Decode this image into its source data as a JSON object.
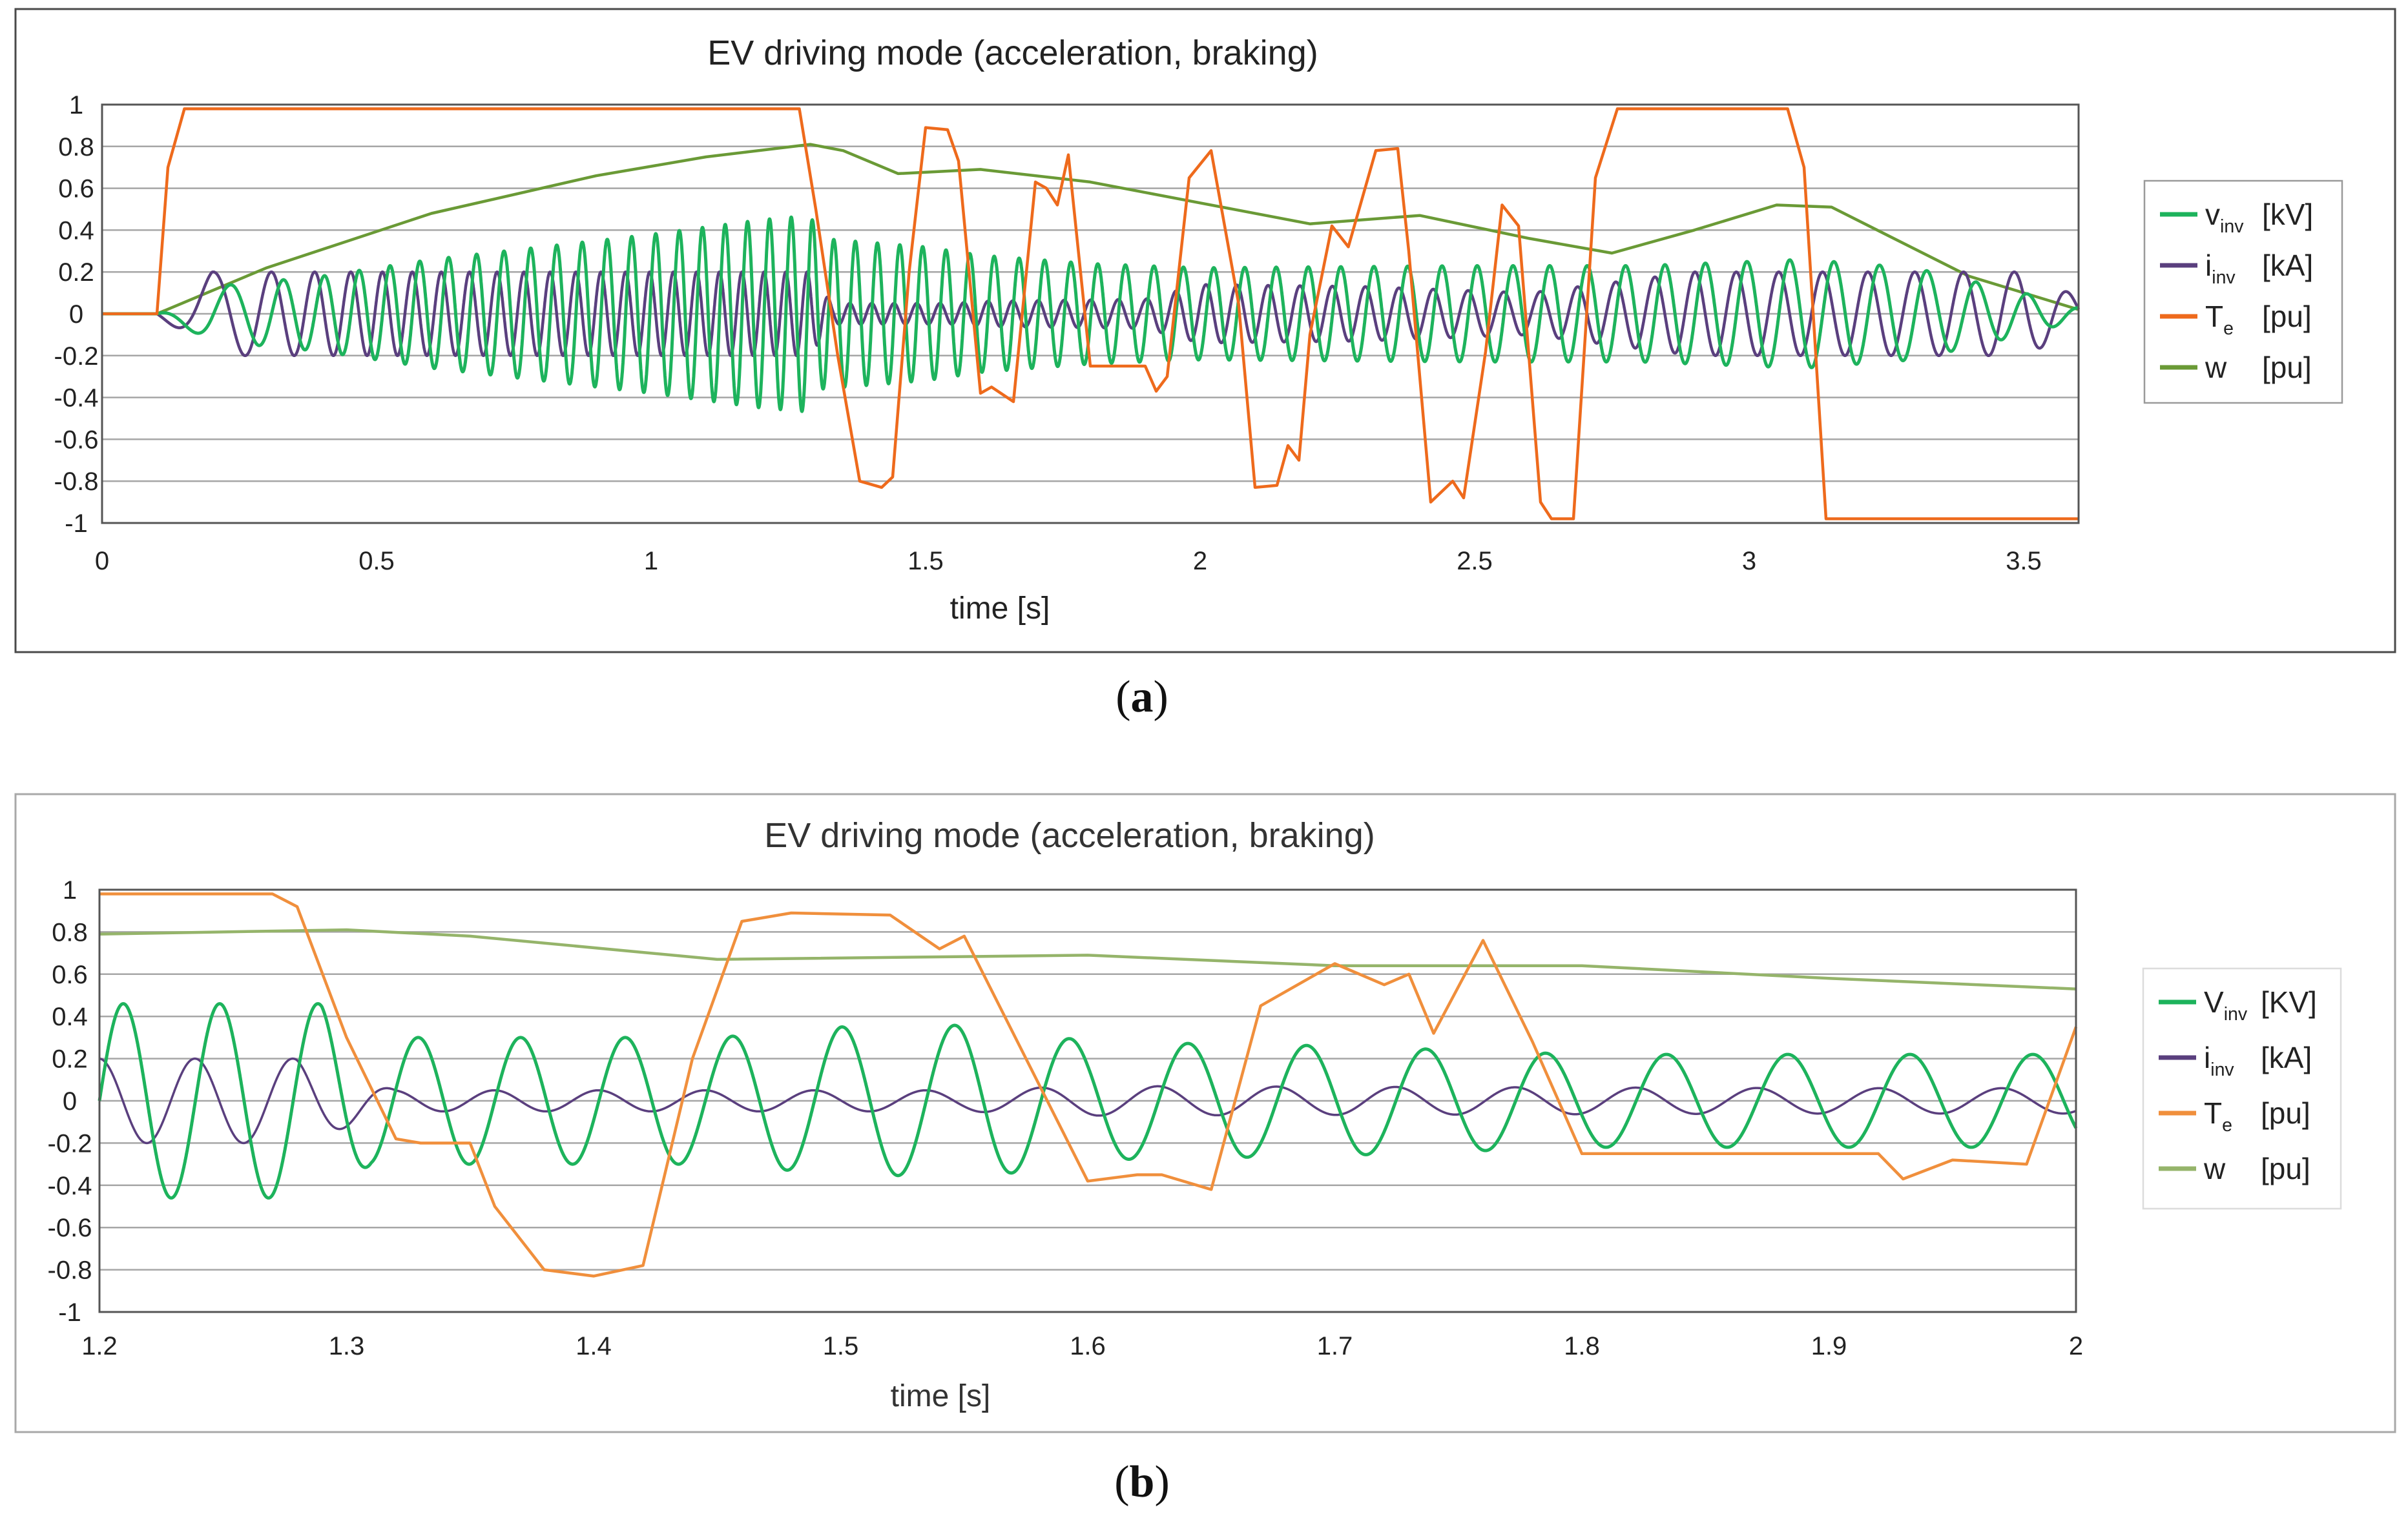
{
  "colors": {
    "v_inv": "#1db35c",
    "i_inv": "#5a3f7e",
    "T_e_a": "#ee6a1c",
    "T_e_b": "#f08f3c",
    "w_a": "#6a9a36",
    "w_b": "#95b46a",
    "grid": "#a6a6a6",
    "frame": "#4a4a4a"
  },
  "chart_data": [
    {
      "type": "line",
      "panel": "a",
      "caption_letter": "a",
      "title": "EV driving mode (acceleration, braking)",
      "xlabel": "time [s]",
      "ylabel": "",
      "xlim": [
        0,
        3.6
      ],
      "ylim": [
        -1,
        1
      ],
      "xticks": [
        "0",
        "0.5",
        "1",
        "1.5",
        "2",
        "2.5",
        "3",
        "3.5"
      ],
      "xtick_values": [
        0,
        0.5,
        1,
        1.5,
        2,
        2.5,
        3,
        3.5
      ],
      "yticks": [
        "1",
        "0.8",
        "0.6",
        "0.4",
        "0.2",
        "0",
        "-0.2",
        "-0.4",
        "-0.6",
        "-0.8",
        "-1"
      ],
      "ytick_values": [
        1,
        0.8,
        0.6,
        0.4,
        0.2,
        0,
        -0.2,
        -0.4,
        -0.6,
        -0.8,
        -1
      ],
      "grid": true,
      "legend_position": "right",
      "legend": [
        {
          "base": "v",
          "sub": "inv",
          "unit": "[kV]"
        },
        {
          "base": "i",
          "sub": "inv",
          "unit": "[kA]"
        },
        {
          "base": "T",
          "sub": "e",
          "unit": "[pu]"
        },
        {
          "base": "w",
          "sub": "",
          "unit": "[pu]"
        }
      ],
      "series": [
        {
          "name": "v_inv [kV]",
          "kind": "oscillation",
          "freq": [
            [
              0.1,
              4
            ],
            [
              0.5,
              18
            ],
            [
              1.3,
              26
            ],
            [
              2.0,
              18
            ],
            [
              3.6,
              10
            ]
          ],
          "amplitude": [
            [
              0,
              0
            ],
            [
              0.1,
              0
            ],
            [
              0.2,
              0.13
            ],
            [
              0.4,
              0.18
            ],
            [
              0.6,
              0.26
            ],
            [
              0.8,
              0.32
            ],
            [
              1.0,
              0.38
            ],
            [
              1.2,
              0.45
            ],
            [
              1.29,
              0.47
            ],
            [
              1.31,
              0.36
            ],
            [
              1.5,
              0.32
            ],
            [
              1.6,
              0.28
            ],
            [
              1.8,
              0.24
            ],
            [
              2.0,
              0.22
            ],
            [
              2.5,
              0.23
            ],
            [
              2.8,
              0.23
            ],
            [
              3.1,
              0.26
            ],
            [
              3.3,
              0.22
            ],
            [
              3.5,
              0.1
            ],
            [
              3.6,
              0.03
            ]
          ]
        },
        {
          "name": "i_inv [kA]",
          "kind": "oscillation",
          "freq": [
            [
              0.1,
              4
            ],
            [
              0.5,
              18
            ],
            [
              1.3,
              26
            ],
            [
              2.0,
              18
            ],
            [
              3.6,
              10
            ]
          ],
          "phase": 1.6,
          "amplitude": [
            [
              0,
              0
            ],
            [
              0.1,
              0
            ],
            [
              0.2,
              0.2
            ],
            [
              1.25,
              0.2
            ],
            [
              1.29,
              0.2
            ],
            [
              1.33,
              0.05
            ],
            [
              1.55,
              0.05
            ],
            [
              1.6,
              0.06
            ],
            [
              1.9,
              0.07
            ],
            [
              2.0,
              0.14
            ],
            [
              2.3,
              0.13
            ],
            [
              2.6,
              0.1
            ],
            [
              2.9,
              0.2
            ],
            [
              3.5,
              0.2
            ],
            [
              3.6,
              0.08
            ]
          ]
        },
        {
          "name": "T_e [pu]",
          "x": [
            0,
            0.1,
            0.12,
            0.15,
            1.27,
            1.3,
            1.34,
            1.38,
            1.42,
            1.44,
            1.47,
            1.5,
            1.54,
            1.56,
            1.6,
            1.62,
            1.66,
            1.7,
            1.72,
            1.74,
            1.76,
            1.8,
            1.9,
            1.92,
            1.94,
            1.98,
            2.02,
            2.07,
            2.1,
            2.14,
            2.16,
            2.18,
            2.2,
            2.24,
            2.27,
            2.32,
            2.36,
            2.38,
            2.4,
            2.42,
            2.46,
            2.48,
            2.52,
            2.55,
            2.58,
            2.62,
            2.64,
            2.68,
            2.72,
            2.76,
            2.78,
            3.07,
            3.1,
            3.14,
            3.6
          ],
          "y": [
            0,
            0,
            0.7,
            0.98,
            0.98,
            0.5,
            -0.2,
            -0.8,
            -0.83,
            -0.78,
            0.2,
            0.89,
            0.88,
            0.73,
            -0.38,
            -0.35,
            -0.42,
            0.63,
            0.6,
            0.52,
            0.76,
            -0.25,
            -0.25,
            -0.37,
            -0.3,
            0.65,
            0.78,
            0.05,
            -0.83,
            -0.82,
            -0.63,
            -0.7,
            -0.1,
            0.42,
            0.32,
            0.78,
            0.79,
            0.3,
            -0.3,
            -0.9,
            -0.8,
            -0.88,
            -0.18,
            0.52,
            0.42,
            -0.9,
            -0.98,
            -0.98,
            0.65,
            0.98,
            0.98,
            0.98,
            0.7,
            -0.98,
            -0.98
          ]
        },
        {
          "name": "w [pu]",
          "x": [
            0,
            0.1,
            0.3,
            0.6,
            0.9,
            1.1,
            1.29,
            1.35,
            1.45,
            1.6,
            1.8,
            2.0,
            2.2,
            2.4,
            2.6,
            2.75,
            2.9,
            3.05,
            3.15,
            3.4,
            3.6
          ],
          "y": [
            0,
            0,
            0.22,
            0.48,
            0.66,
            0.75,
            0.81,
            0.78,
            0.67,
            0.69,
            0.63,
            0.53,
            0.43,
            0.47,
            0.36,
            0.29,
            0.4,
            0.52,
            0.51,
            0.18,
            0.02
          ]
        }
      ]
    },
    {
      "type": "line",
      "panel": "b",
      "caption_letter": "b",
      "title": "EV driving mode (acceleration, braking)",
      "xlabel": "time [s]",
      "ylabel": "",
      "xlim": [
        1.2,
        2
      ],
      "ylim": [
        -1,
        1
      ],
      "xticks": [
        "1.2",
        "1.3",
        "1.4",
        "1.5",
        "1.6",
        "1.7",
        "1.8",
        "1.9",
        "2"
      ],
      "xtick_values": [
        1.2,
        1.3,
        1.4,
        1.5,
        1.6,
        1.7,
        1.8,
        1.9,
        2
      ],
      "yticks": [
        "1",
        "0.8",
        "0.6",
        "0.4",
        "0.2",
        "0",
        "-0.2",
        "-0.4",
        "-0.6",
        "-0.8",
        "-1"
      ],
      "ytick_values": [
        1,
        0.8,
        0.6,
        0.4,
        0.2,
        0,
        -0.2,
        -0.4,
        -0.6,
        -0.8,
        -1
      ],
      "grid": true,
      "legend_position": "right",
      "legend": [
        {
          "base": "V",
          "sub": "inv",
          "unit": "[KV]"
        },
        {
          "base": "i",
          "sub": "inv",
          "unit": "[kA]"
        },
        {
          "base": "T",
          "sub": "e",
          "unit": "[pu]"
        },
        {
          "base": "w",
          "sub": "",
          "unit": "[pu]"
        }
      ],
      "series": [
        {
          "name": "V_inv [KV]",
          "kind": "oscillation",
          "freq": [
            [
              1.2,
              26
            ],
            [
              1.6,
              21
            ],
            [
              2.0,
              20
            ]
          ],
          "amplitude": [
            [
              1.2,
              0.46
            ],
            [
              1.29,
              0.46
            ],
            [
              1.31,
              0.3
            ],
            [
              1.45,
              0.3
            ],
            [
              1.5,
              0.35
            ],
            [
              1.56,
              0.36
            ],
            [
              1.6,
              0.28
            ],
            [
              1.7,
              0.26
            ],
            [
              1.8,
              0.22
            ],
            [
              2.0,
              0.22
            ]
          ]
        },
        {
          "name": "i_inv [kA]",
          "kind": "oscillation",
          "freq": [
            [
              1.2,
              26
            ],
            [
              1.6,
              21
            ],
            [
              2.0,
              20
            ]
          ],
          "phase": 1.6,
          "amplitude": [
            [
              1.2,
              0.2
            ],
            [
              1.28,
              0.2
            ],
            [
              1.32,
              0.05
            ],
            [
              1.55,
              0.05
            ],
            [
              1.6,
              0.07
            ],
            [
              1.9,
              0.06
            ],
            [
              2.0,
              0.06
            ]
          ]
        },
        {
          "name": "T_e [pu]",
          "x": [
            1.2,
            1.27,
            1.28,
            1.3,
            1.32,
            1.33,
            1.35,
            1.36,
            1.38,
            1.4,
            1.42,
            1.44,
            1.46,
            1.48,
            1.52,
            1.54,
            1.55,
            1.6,
            1.62,
            1.63,
            1.65,
            1.67,
            1.7,
            1.72,
            1.73,
            1.74,
            1.76,
            1.78,
            1.8,
            1.82,
            1.92,
            1.93,
            1.95,
            1.98,
            2.0
          ],
          "y": [
            0.98,
            0.98,
            0.92,
            0.3,
            -0.18,
            -0.2,
            -0.2,
            -0.5,
            -0.8,
            -0.83,
            -0.78,
            0.2,
            0.85,
            0.89,
            0.88,
            0.72,
            0.78,
            -0.38,
            -0.35,
            -0.35,
            -0.42,
            0.45,
            0.65,
            0.55,
            0.6,
            0.32,
            0.76,
            0.28,
            -0.25,
            -0.25,
            -0.25,
            -0.37,
            -0.28,
            -0.3,
            0.35
          ]
        },
        {
          "name": "w [pu]",
          "x": [
            1.2,
            1.3,
            1.35,
            1.45,
            1.6,
            1.7,
            1.8,
            1.9,
            2.0
          ],
          "y": [
            0.79,
            0.81,
            0.78,
            0.67,
            0.69,
            0.64,
            0.64,
            0.58,
            0.53
          ]
        }
      ]
    }
  ]
}
